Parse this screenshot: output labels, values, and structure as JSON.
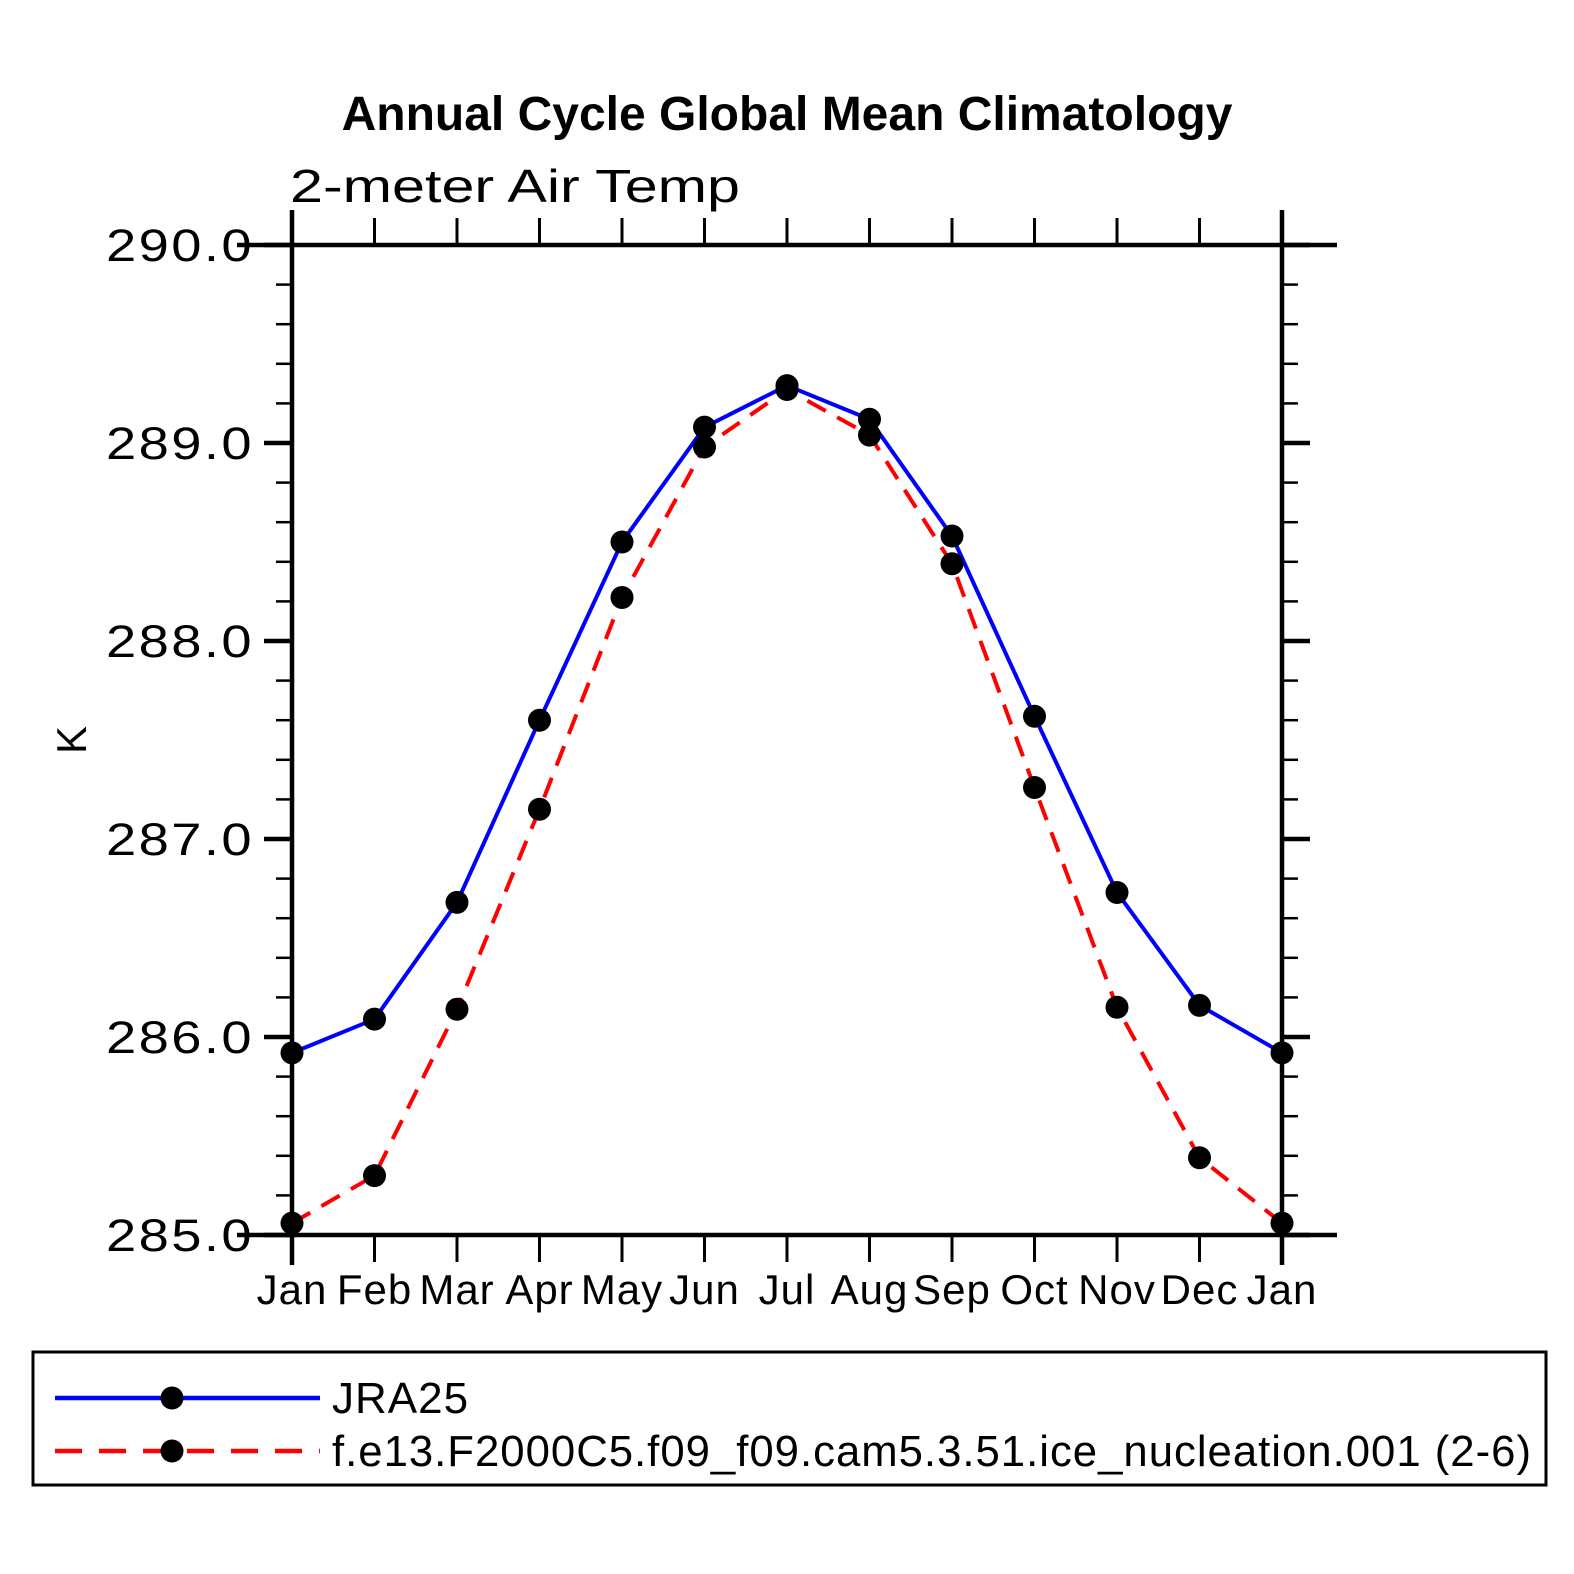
{
  "page_title": "Annual Cycle Global Mean Climatology",
  "chart_data": {
    "type": "line",
    "title": "Annual Cycle Global Mean Climatology",
    "subtitle": "2-meter Air Temp",
    "ylabel": "K",
    "xlabel": "",
    "categories": [
      "Jan",
      "Feb",
      "Mar",
      "Apr",
      "May",
      "Jun",
      "Jul",
      "Aug",
      "Sep",
      "Oct",
      "Nov",
      "Dec",
      "Jan"
    ],
    "ylim": [
      285.0,
      290.0
    ],
    "ytick_interval": 1.0,
    "ytick_minor_interval": 0.2,
    "ytick_labels": [
      "285.0",
      "286.0",
      "287.0",
      "288.0",
      "289.0",
      "290.0"
    ],
    "grid": false,
    "legend_position": "bottom",
    "series": [
      {
        "name": "JRA25",
        "color": "#0000ff",
        "line_style": "solid",
        "marker": "filled-circle",
        "marker_color": "#000000",
        "values": [
          285.92,
          286.09,
          286.68,
          287.6,
          288.5,
          289.08,
          289.29,
          289.12,
          288.53,
          287.62,
          286.73,
          286.16,
          285.92
        ]
      },
      {
        "name": "f.e13.F2000C5.f09_f09.cam5.3.51.ice_nucleation.001 (2-6)",
        "color": "#ff0000",
        "line_style": "dashed",
        "marker": "filled-circle",
        "marker_color": "#000000",
        "values": [
          285.06,
          285.3,
          286.14,
          287.15,
          288.22,
          288.98,
          289.27,
          289.04,
          288.39,
          287.26,
          286.15,
          285.39,
          285.06
        ]
      }
    ]
  }
}
